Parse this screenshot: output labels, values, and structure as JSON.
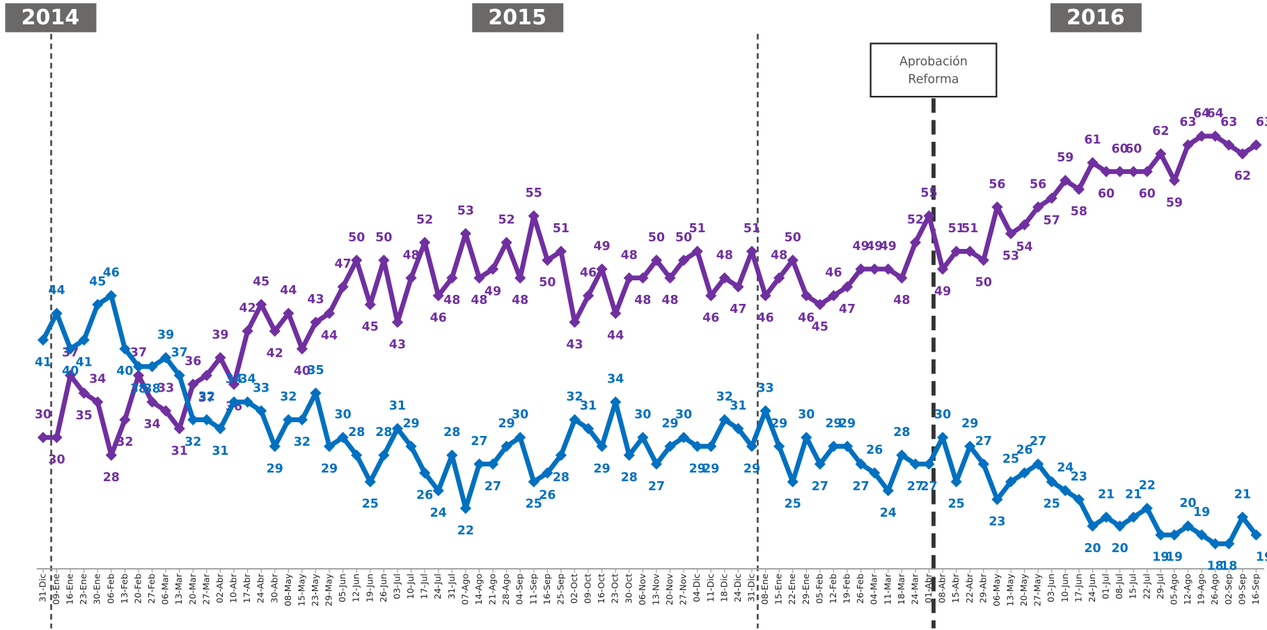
{
  "chart_data": {
    "type": "line",
    "annotations": {
      "years": [
        "2014",
        "2015",
        "2016"
      ],
      "event": [
        "Aprobación",
        "Reforma"
      ]
    },
    "categories": [
      "31-Dic",
      "09-Ene",
      "16-Ene",
      "23-Ene",
      "30-Ene",
      "06-Feb",
      "13-Feb",
      "20-Feb",
      "27-Feb",
      "06-Mar",
      "13-Mar",
      "20-Mar",
      "27-Mar",
      "02-Abr",
      "10-Abr",
      "17-Abr",
      "24-Abr",
      "30-Abr",
      "08-May",
      "15-May",
      "23-May",
      "29-May",
      "05-Jun",
      "12-Jun",
      "19-Jun",
      "26-Jun",
      "03-Jul",
      "10-Jul",
      "17-Jul",
      "24-Jul",
      "31-Jul",
      "07-Ago",
      "14-Ago",
      "21-Ago",
      "28-Ago",
      "04-Sep",
      "11-Sep",
      "16-Sep",
      "25-Sep",
      "02-Oct",
      "09-Oct",
      "16-Oct",
      "23-Oct",
      "30-Oct",
      "06-Nov",
      "13-Nov",
      "20-Nov",
      "27-Nov",
      "04-Dic",
      "11-Dic",
      "18-Dic",
      "24-Dic",
      "31-Dic",
      "08-Ene",
      "15-Ene",
      "22-Ene",
      "29-Ene",
      "05-Feb",
      "12-Feb",
      "19-Feb",
      "26-Feb",
      "04-Mar",
      "11-Mar",
      "18-Mar",
      "24-Mar",
      "01-Abr",
      "08-Abr",
      "15-Abr",
      "22-Abr",
      "29-Abr",
      "06-May",
      "13-May",
      "20-May",
      "27-May",
      "03-Jun",
      "10-Jun",
      "17-Jun",
      "24-Jun",
      "01-Jul",
      "08-Jul",
      "15-Jul",
      "22-Jul",
      "29-Jul",
      "05-Ago",
      "12-Ago",
      "19-Ago",
      "26-Ago",
      "02-Sep",
      "09-Sep",
      "16-Sep"
    ],
    "series": [
      {
        "color": "#7030a0",
        "values": [
          30,
          30,
          37,
          35,
          34,
          28,
          32,
          37,
          34,
          33,
          31,
          36,
          37,
          39,
          36,
          42,
          45,
          42,
          44,
          40,
          43,
          44,
          47,
          50,
          45,
          50,
          43,
          48,
          52,
          46,
          48,
          53,
          48,
          49,
          52,
          48,
          55,
          50,
          51,
          43,
          46,
          49,
          44,
          48,
          48,
          50,
          48,
          50,
          51,
          46,
          48,
          47,
          51,
          46,
          48,
          50,
          46,
          45,
          46,
          47,
          49,
          49,
          49,
          48,
          52,
          55,
          49,
          51,
          51,
          50,
          56,
          53,
          54,
          56,
          57,
          59,
          58,
          61,
          60,
          60,
          60,
          60,
          62,
          59,
          63,
          64,
          64,
          63,
          62,
          63
        ]
      },
      {
        "color": "#0070c0",
        "values": [
          41,
          44,
          40,
          41,
          45,
          46,
          40,
          38,
          38,
          39,
          37,
          32,
          32,
          31,
          34,
          34,
          33,
          29,
          32,
          32,
          35,
          29,
          30,
          28,
          25,
          28,
          31,
          29,
          26,
          24,
          28,
          22,
          27,
          27,
          29,
          30,
          25,
          26,
          28,
          32,
          31,
          29,
          34,
          28,
          30,
          27,
          29,
          30,
          29,
          29,
          32,
          31,
          29,
          33,
          29,
          25,
          30,
          27,
          29,
          29,
          27,
          26,
          24,
          28,
          27,
          27,
          30,
          25,
          29,
          27,
          23,
          25,
          26,
          27,
          25,
          24,
          23,
          20,
          21,
          20,
          21,
          22,
          19,
          19,
          20,
          19,
          18,
          18,
          21,
          19
        ]
      }
    ]
  }
}
